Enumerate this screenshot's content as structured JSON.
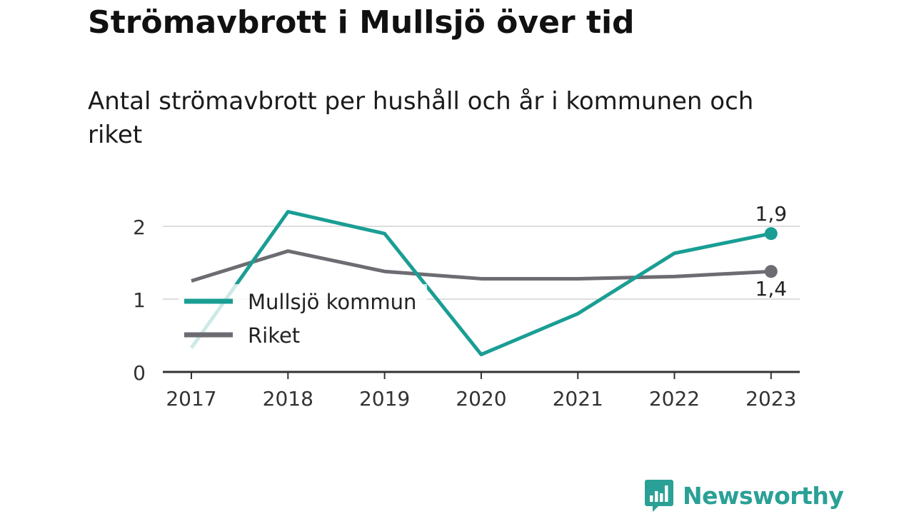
{
  "title": "Strömavbrott i Mullsjö över tid",
  "subtitle": "Antal strömavbrott per hushåll och år i kommunen och riket",
  "brand": {
    "name": "Newsworthy",
    "logo_icon": "bar-chart-speech-bubble-icon",
    "color": "#2aa096"
  },
  "chart_data": {
    "type": "line",
    "categories": [
      "2017",
      "2018",
      "2019",
      "2020",
      "2021",
      "2022",
      "2023"
    ],
    "series": [
      {
        "name": "Mullsjö kommun",
        "color": "#1a9e94",
        "values": [
          0.33,
          2.2,
          1.9,
          0.24,
          0.8,
          1.63,
          1.9
        ]
      },
      {
        "name": "Riket",
        "color": "#6c6c72",
        "values": [
          1.25,
          1.66,
          1.38,
          1.28,
          1.28,
          1.31,
          1.38
        ]
      }
    ],
    "end_labels": [
      "1,9",
      "1,4"
    ],
    "y_ticks": [
      0,
      1,
      2
    ],
    "ylim": [
      0,
      2.2
    ],
    "grid": true,
    "legend": "inside-left"
  }
}
